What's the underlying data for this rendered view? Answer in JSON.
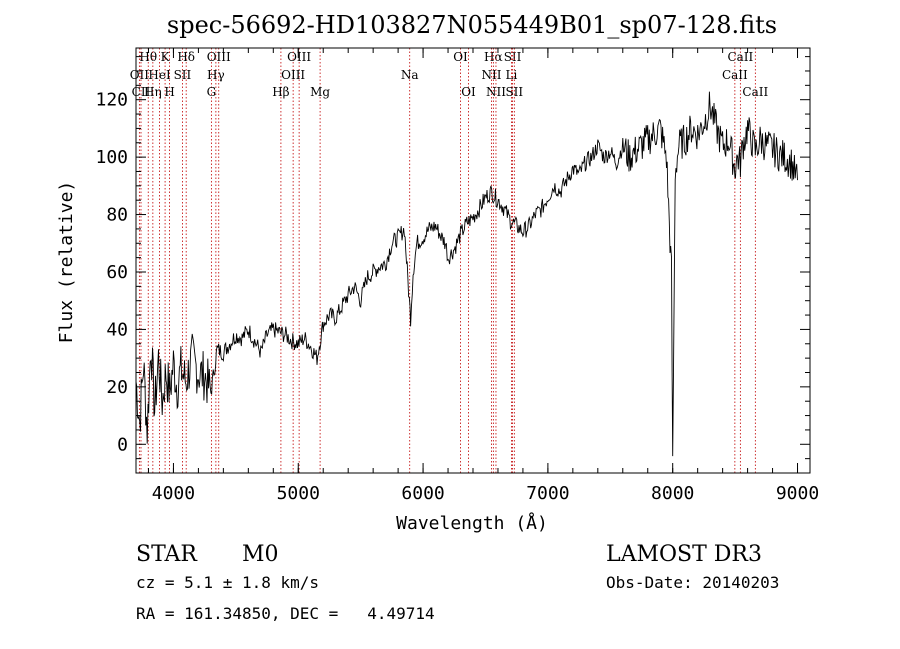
{
  "chart_data": {
    "type": "line",
    "title": "spec-56692-HD103827N055449B01_sp07-128.fits",
    "xlabel": "Wavelength (Å)",
    "ylabel": "Flux (relative)",
    "xlim": [
      3700,
      9100
    ],
    "ylim": [
      -10,
      138
    ],
    "x_ticks": [
      4000,
      5000,
      6000,
      7000,
      8000,
      9000
    ],
    "y_ticks": [
      0,
      20,
      40,
      60,
      80,
      100,
      120
    ],
    "grid": false,
    "series": [
      {
        "x": [
          3700,
          3730,
          3760,
          3790,
          3820,
          3850,
          3880,
          3910,
          3940,
          3970,
          4000,
          4030,
          4060,
          4100,
          4150,
          4200,
          4250,
          4300,
          4350,
          4400,
          4450,
          4500,
          4550,
          4600,
          4650,
          4700,
          4750,
          4800,
          4850,
          4900,
          4950,
          5000,
          5050,
          5100,
          5150,
          5200,
          5250,
          5300,
          5350,
          5400,
          5450,
          5500,
          5550,
          5600,
          5650,
          5700,
          5750,
          5800,
          5850,
          5890,
          5900,
          5920,
          5950,
          6000,
          6050,
          6100,
          6150,
          6180,
          6200,
          6250,
          6300,
          6350,
          6400,
          6450,
          6500,
          6550,
          6563,
          6580,
          6620,
          6650,
          6700,
          6750,
          6800,
          6850,
          6900,
          6950,
          7000,
          7050,
          7100,
          7150,
          7200,
          7250,
          7300,
          7350,
          7400,
          7450,
          7500,
          7550,
          7600,
          7650,
          7700,
          7750,
          7800,
          7850,
          7900,
          7950,
          7990,
          8000,
          8020,
          8050,
          8100,
          8150,
          8200,
          8250,
          8300,
          8350,
          8400,
          8450,
          8498,
          8520,
          8542,
          8560,
          8600,
          8662,
          8700,
          8750,
          8800,
          8850,
          8900,
          8950,
          9000
        ],
        "values": [
          22,
          8,
          28,
          5,
          35,
          12,
          30,
          15,
          25,
          18,
          28,
          20,
          26,
          22,
          30,
          25,
          24,
          18,
          33,
          32,
          35,
          38,
          37,
          40,
          36,
          32,
          38,
          40,
          39,
          38,
          36,
          35,
          37,
          34,
          30,
          42,
          45,
          44,
          48,
          52,
          55,
          50,
          58,
          60,
          62,
          63,
          70,
          72,
          75,
          50,
          44,
          60,
          70,
          72,
          75,
          76,
          72,
          70,
          65,
          68,
          73,
          77,
          79,
          82,
          86,
          88,
          87,
          86,
          84,
          82,
          78,
          76,
          74,
          76,
          80,
          82,
          86,
          90,
          88,
          92,
          96,
          94,
          98,
          100,
          104,
          100,
          102,
          98,
          104,
          100,
          102,
          104,
          106,
          108,
          110,
          100,
          60,
          -8,
          95,
          104,
          106,
          110,
          108,
          112,
          118,
          110,
          104,
          106,
          96,
          100,
          98,
          104,
          110,
          102,
          106,
          104,
          103,
          101,
          100,
          98,
          92
        ]
      }
    ],
    "line_markers": [
      {
        "label": "Hθ",
        "x": 3798,
        "row": 0
      },
      {
        "label": "OII",
        "x": 3727,
        "row": 1
      },
      {
        "label": "CII",
        "x": 3740,
        "row": 2
      },
      {
        "label": "Hη",
        "x": 3835,
        "row": 2
      },
      {
        "label": "K",
        "x": 3933,
        "row": 0
      },
      {
        "label": "HeI",
        "x": 3889,
        "row": 1
      },
      {
        "label": "H",
        "x": 3969,
        "row": 2
      },
      {
        "label": "SII",
        "x": 4072,
        "row": 1
      },
      {
        "label": "Hδ",
        "x": 4102,
        "row": 0
      },
      {
        "label": "OIII",
        "x": 4363,
        "row": 0
      },
      {
        "label": "Hγ",
        "x": 4340,
        "row": 1
      },
      {
        "label": "G",
        "x": 4304,
        "row": 2
      },
      {
        "label": "Hβ",
        "x": 4861,
        "row": 2
      },
      {
        "label": "OIII",
        "x": 5007,
        "row": 0
      },
      {
        "label": "OIII",
        "x": 4959,
        "row": 1
      },
      {
        "label": "Mg",
        "x": 5175,
        "row": 2
      },
      {
        "label": "Na",
        "x": 5893,
        "row": 1
      },
      {
        "label": "OI",
        "x": 6300,
        "row": 0
      },
      {
        "label": "OI",
        "x": 6364,
        "row": 2
      },
      {
        "label": "Hα",
        "x": 6563,
        "row": 0
      },
      {
        "label": "NII",
        "x": 6548,
        "row": 1
      },
      {
        "label": "NII",
        "x": 6584,
        "row": 2
      },
      {
        "label": "SII",
        "x": 6717,
        "row": 0
      },
      {
        "label": "Li",
        "x": 6708,
        "row": 1
      },
      {
        "label": "SII",
        "x": 6731,
        "row": 2
      },
      {
        "label": "CaII",
        "x": 8542,
        "row": 0
      },
      {
        "label": "CaII",
        "x": 8498,
        "row": 1
      },
      {
        "label": "CaII",
        "x": 8662,
        "row": 2
      }
    ]
  },
  "info": {
    "class": "STAR",
    "subclass": "M0",
    "survey": "LAMOST DR3",
    "cz": "cz = 5.1 ± 1.8 km/s",
    "obs_date": "Obs-Date: 20140203",
    "radec": "RA = 161.34850, DEC =   4.49714"
  },
  "colors": {
    "spectrum": "#000000",
    "marker_line": "#c00000",
    "text": "#000000"
  }
}
